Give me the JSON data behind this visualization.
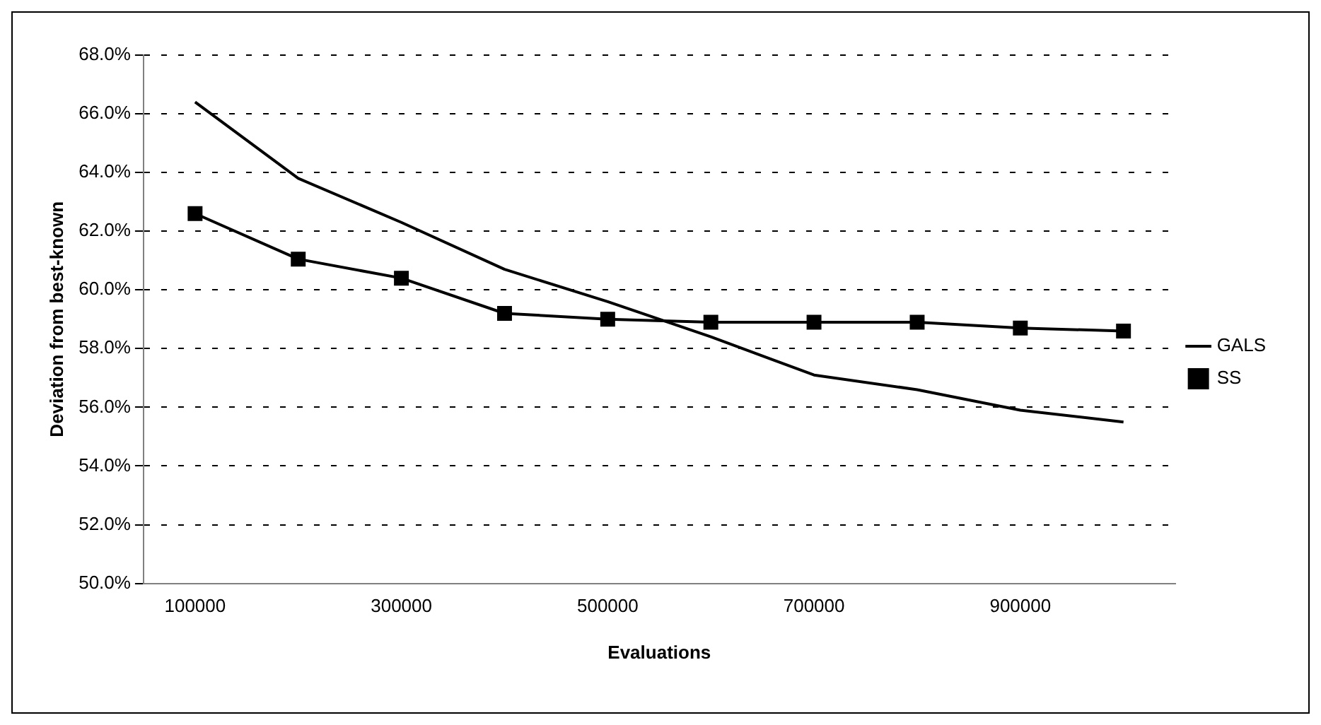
{
  "chart_data": {
    "type": "line",
    "xlabel": "Evaluations",
    "ylabel": "Deviation from best-known",
    "categories": [
      "100000",
      null,
      "300000",
      null,
      "500000",
      null,
      "700000",
      null,
      "900000",
      null
    ],
    "series": [
      {
        "name": "GALS",
        "color": "#000000",
        "marker": "none",
        "values": [
          66.4,
          63.8,
          62.3,
          60.7,
          59.6,
          58.4,
          57.1,
          56.6,
          55.9,
          55.5
        ]
      },
      {
        "name": "SS",
        "color": "#000000",
        "marker": "square",
        "values": [
          62.6,
          61.05,
          60.4,
          59.2,
          59.0,
          58.9,
          58.9,
          58.9,
          58.7,
          58.6
        ]
      }
    ],
    "ylim": [
      50,
      68
    ],
    "yticks": [
      {
        "value": 50,
        "label": "50.0%"
      },
      {
        "value": 52,
        "label": "52.0%"
      },
      {
        "value": 54,
        "label": "54.0%"
      },
      {
        "value": 56,
        "label": "56.0%"
      },
      {
        "value": 58,
        "label": "58.0%"
      },
      {
        "value": 60,
        "label": "60.0%"
      },
      {
        "value": 62,
        "label": "62.0%"
      },
      {
        "value": 64,
        "label": "64.0%"
      },
      {
        "value": 66,
        "label": "66.0%"
      },
      {
        "value": 68,
        "label": "68.0%"
      }
    ],
    "grid": "y",
    "legend": "right",
    "line_style": "solid"
  }
}
